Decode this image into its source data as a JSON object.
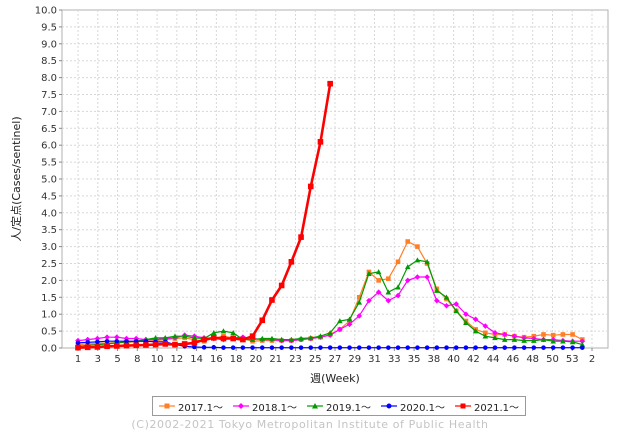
{
  "chart_data": {
    "type": "line",
    "title": "",
    "xlabel": "週(Week)",
    "ylabel": "人/定点(Cases/sentinel)",
    "ylim": [
      0,
      10
    ],
    "yticks": [
      "0.0",
      "0.5",
      "1.0",
      "1.5",
      "2.0",
      "2.5",
      "3.0",
      "3.5",
      "4.0",
      "4.5",
      "5.0",
      "5.5",
      "6.0",
      "6.5",
      "7.0",
      "7.5",
      "8.0",
      "8.5",
      "9.0",
      "9.5",
      "10.0"
    ],
    "x_index_range": [
      1,
      54
    ],
    "x_tick_labels": [
      "1",
      "3",
      "5",
      "8",
      "10",
      "12",
      "14",
      "16",
      "18",
      "20",
      "21",
      "23",
      "25",
      "27",
      "29",
      "31",
      "33",
      "35",
      "38",
      "40",
      "42",
      "44",
      "46",
      "48",
      "50",
      "53",
      "2"
    ],
    "legend_position": "bottom",
    "grid": true,
    "series": [
      {
        "name": "2017.1～",
        "color": "#ff7f27",
        "marker": "square",
        "values": [
          0.1,
          0.12,
          0.13,
          0.15,
          0.15,
          0.17,
          0.18,
          0.2,
          0.22,
          0.25,
          0.28,
          0.3,
          0.25,
          0.2,
          0.3,
          0.35,
          0.3,
          0.28,
          0.2,
          0.22,
          0.22,
          0.22,
          0.22,
          0.25,
          0.28,
          0.32,
          0.4,
          0.55,
          0.8,
          1.5,
          2.25,
          2.0,
          2.05,
          2.55,
          3.15,
          3.0,
          2.5,
          1.75,
          1.45,
          1.1,
          0.8,
          0.55,
          0.45,
          0.4,
          0.4,
          0.35,
          0.32,
          0.35,
          0.4,
          0.38,
          0.4,
          0.4,
          0.25
        ]
      },
      {
        "name": "2018.1～",
        "color": "#ff00ff",
        "marker": "diamond",
        "values": [
          0.22,
          0.25,
          0.28,
          0.32,
          0.32,
          0.28,
          0.28,
          0.25,
          0.25,
          0.28,
          0.3,
          0.38,
          0.35,
          0.3,
          0.28,
          0.25,
          0.3,
          0.32,
          0.28,
          0.25,
          0.25,
          0.22,
          0.22,
          0.25,
          0.28,
          0.32,
          0.38,
          0.55,
          0.7,
          0.95,
          1.4,
          1.65,
          1.4,
          1.55,
          2.0,
          2.1,
          2.1,
          1.4,
          1.25,
          1.3,
          1.0,
          0.85,
          0.65,
          0.45,
          0.4,
          0.35,
          0.3,
          0.28,
          0.25,
          0.25,
          0.22,
          0.2,
          0.2
        ]
      },
      {
        "name": "2019.1～",
        "color": "#009900",
        "marker": "triangle",
        "values": [
          0.05,
          0.08,
          0.1,
          0.12,
          0.15,
          0.18,
          0.2,
          0.25,
          0.3,
          0.3,
          0.35,
          0.35,
          0.3,
          0.28,
          0.45,
          0.5,
          0.45,
          0.25,
          0.25,
          0.28,
          0.28,
          0.25,
          0.25,
          0.28,
          0.3,
          0.35,
          0.45,
          0.8,
          0.85,
          1.35,
          2.2,
          2.25,
          1.65,
          1.8,
          2.4,
          2.6,
          2.55,
          1.7,
          1.5,
          1.1,
          0.75,
          0.5,
          0.35,
          0.3,
          0.25,
          0.25,
          0.22,
          0.22,
          0.25,
          0.2,
          0.2,
          0.18,
          0.1
        ]
      },
      {
        "name": "2020.1～",
        "color": "#0000ff",
        "marker": "circle",
        "values": [
          0.15,
          0.17,
          0.18,
          0.2,
          0.2,
          0.2,
          0.2,
          0.2,
          0.18,
          0.18,
          0.1,
          0.05,
          0.03,
          0.02,
          0.02,
          0.01,
          0.01,
          0.01,
          0.01,
          0.01,
          0.01,
          0.01,
          0.01,
          0.01,
          0.01,
          0.01,
          0.01,
          0.01,
          0.01,
          0.01,
          0.01,
          0.01,
          0.01,
          0.01,
          0.01,
          0.01,
          0.01,
          0.01,
          0.01,
          0.01,
          0.01,
          0.01,
          0.01,
          0.01,
          0.01,
          0.01,
          0.01,
          0.01,
          0.01,
          0.01,
          0.01,
          0.01,
          0.01
        ]
      },
      {
        "name": "2021.1～",
        "color": "#ff0000",
        "marker": "square",
        "values": [
          0.01,
          0.02,
          0.03,
          0.05,
          0.06,
          0.07,
          0.08,
          0.09,
          0.1,
          0.12,
          0.1,
          0.12,
          0.15,
          0.25,
          0.3,
          0.28,
          0.28,
          0.25,
          0.35,
          0.82,
          1.42,
          1.85,
          2.55,
          3.28,
          4.78,
          6.1,
          7.82
        ]
      }
    ]
  },
  "copyright": "(C)2002-2021 Tokyo Metropolitan Institute of Public Health"
}
